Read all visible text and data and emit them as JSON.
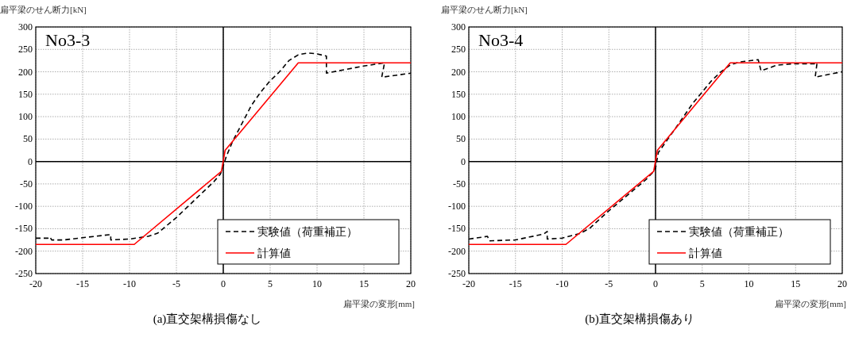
{
  "chart_data": [
    {
      "type": "line",
      "title": "No3-3",
      "xlabel": "扁平梁の変形[mm]",
      "ylabel": "扁平梁のせん断力[kN]",
      "annotations": [
        "(a)直交架構損傷なし"
      ],
      "xlim": [
        -20,
        20
      ],
      "ylim": [
        -250,
        300
      ],
      "xticks": [
        -20,
        -15,
        -10,
        -5,
        0,
        5,
        10,
        15,
        20
      ],
      "yticks": [
        -250,
        -200,
        -150,
        -100,
        -50,
        0,
        50,
        100,
        150,
        200,
        250,
        300
      ],
      "grid": true,
      "legend": "bottom right",
      "series": [
        {
          "name": "実験値（荷重補正）",
          "color": "#000000",
          "line_style": "dashed",
          "x": [
            -20,
            -18.7,
            -18.5,
            -18.3,
            -17,
            -15,
            -12,
            -12,
            -10,
            -8,
            -7,
            -5,
            -3,
            -1,
            -0.3,
            0,
            0.3,
            1,
            2,
            3,
            4,
            5,
            6,
            7,
            8,
            9,
            10,
            11,
            11,
            13,
            15,
            17.2,
            16.9,
            18,
            20
          ],
          "values": [
            -171,
            -171,
            -168,
            -175,
            -175,
            -170,
            -163,
            -175,
            -173,
            -167,
            -160,
            -125,
            -85,
            -45,
            -28,
            -10,
            10,
            45,
            85,
            125,
            155,
            180,
            200,
            225,
            238,
            242,
            240,
            235,
            197,
            205,
            213,
            220,
            188,
            191,
            197
          ]
        },
        {
          "name": "計算値",
          "color": "#ff0000",
          "line_style": "solid",
          "x": [
            -20,
            -9.5,
            -0.2,
            0.2,
            8,
            20
          ],
          "values": [
            -185,
            -185,
            -22,
            25,
            220,
            220
          ]
        }
      ]
    },
    {
      "type": "line",
      "title": "No3-4",
      "xlabel": "扁平梁の変形[mm]",
      "ylabel": "扁平梁のせん断力[kN]",
      "annotations": [
        "(b)直交架構損傷あり"
      ],
      "xlim": [
        -20,
        20
      ],
      "ylim": [
        -250,
        300
      ],
      "xticks": [
        -20,
        -15,
        -10,
        -5,
        0,
        5,
        10,
        15,
        20
      ],
      "yticks": [
        -250,
        -200,
        -150,
        -100,
        -50,
        0,
        50,
        100,
        150,
        200,
        250,
        300
      ],
      "grid": true,
      "legend": "bottom right",
      "series": [
        {
          "name": "実験値（荷重補正）",
          "color": "#000000",
          "line_style": "dashed",
          "x": [
            -20,
            -18,
            -17.8,
            -15,
            -12,
            -11.6,
            -11.6,
            -10,
            -8,
            -7,
            -5,
            -3,
            -1,
            -0.2,
            0,
            0.3,
            2,
            4,
            6,
            7,
            8,
            9,
            11,
            11.3,
            13,
            15,
            17,
            17.3,
            17.1,
            18,
            20
          ],
          "values": [
            -173,
            -167,
            -177,
            -175,
            -162,
            -156,
            -173,
            -171,
            -160,
            -148,
            -110,
            -75,
            -40,
            -22,
            -15,
            20,
            70,
            130,
            180,
            200,
            215,
            222,
            227,
            202,
            215,
            218,
            218,
            220,
            188,
            192,
            200
          ]
        },
        {
          "name": "計算値",
          "color": "#ff0000",
          "line_style": "solid",
          "x": [
            -20,
            -9.6,
            -0.2,
            0.2,
            8,
            20
          ],
          "values": [
            -185,
            -185,
            -22,
            25,
            220,
            220
          ]
        }
      ]
    }
  ]
}
